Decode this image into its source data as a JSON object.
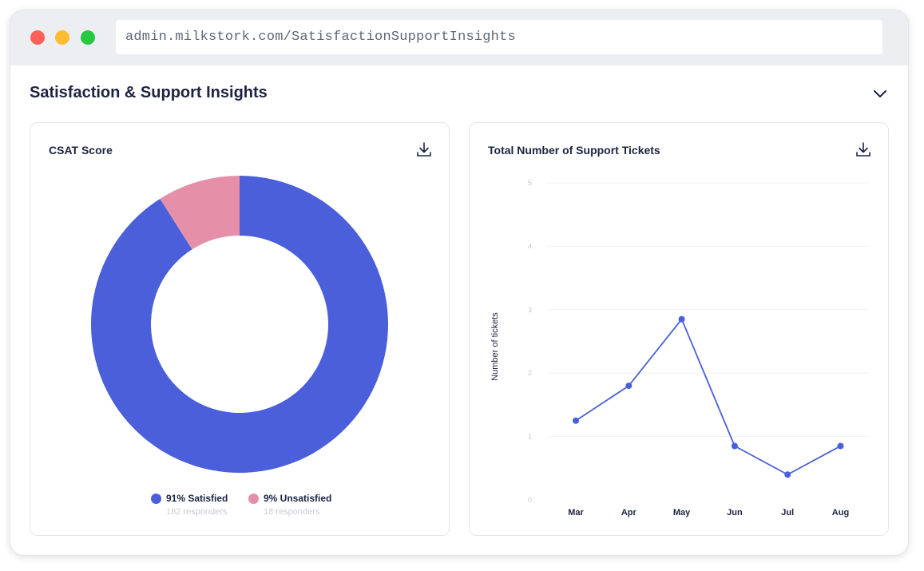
{
  "browser": {
    "url": "admin.milkstork.com/SatisfactionSupportInsights"
  },
  "section": {
    "title": "Satisfaction & Support Insights"
  },
  "csat_card": {
    "title": "CSAT Score",
    "legend": [
      {
        "label": "91% Satisfied",
        "sub": "182 responders",
        "color": "#4a5fd9"
      },
      {
        "label": "9% Unsatisfied",
        "sub": "18 responders",
        "color": "#e58fa9"
      }
    ]
  },
  "tickets_card": {
    "title": "Total Number of  Support Tickets",
    "ylabel": "Number of tickets"
  },
  "chart_data": [
    {
      "type": "pie",
      "categories": [
        "Satisfied",
        "Unsatisfied"
      ],
      "values": [
        91,
        9
      ],
      "counts": [
        182,
        18
      ],
      "colors": [
        "#4a5fd9",
        "#e58fa9"
      ],
      "donut": true
    },
    {
      "type": "line",
      "categories": [
        "Mar",
        "Apr",
        "May",
        "Jun",
        "Jul",
        "Aug"
      ],
      "series": [
        {
          "values": [
            1.25,
            1.8,
            2.85,
            0.85,
            0.4,
            0.85
          ],
          "color": "#4a5fd9"
        }
      ],
      "ylabel": "Number of tickets",
      "ylim": [
        0,
        5
      ],
      "yticks": [
        "0",
        "1",
        "2",
        "3",
        "4",
        "5"
      ],
      "grid": true
    }
  ]
}
